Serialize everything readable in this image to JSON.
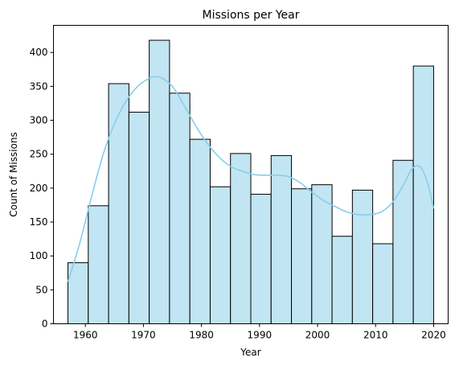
{
  "chart_data": {
    "type": "bar",
    "title": "Missions per Year",
    "xlabel": "Year",
    "ylabel": "Count of Missions",
    "xlim": [
      1954.5,
      2022.5
    ],
    "ylim": [
      0,
      440
    ],
    "x_ticks": [
      1960,
      1970,
      1980,
      1990,
      2000,
      2010,
      2020
    ],
    "y_ticks": [
      0,
      50,
      100,
      150,
      200,
      250,
      300,
      350,
      400
    ],
    "bins": [
      {
        "start": 1957.0,
        "end": 1960.5,
        "value": 90
      },
      {
        "start": 1960.5,
        "end": 1964.0,
        "value": 174
      },
      {
        "start": 1964.0,
        "end": 1967.5,
        "value": 354
      },
      {
        "start": 1967.5,
        "end": 1971.0,
        "value": 312
      },
      {
        "start": 1971.0,
        "end": 1974.5,
        "value": 418
      },
      {
        "start": 1974.5,
        "end": 1978.0,
        "value": 340
      },
      {
        "start": 1978.0,
        "end": 1981.5,
        "value": 272
      },
      {
        "start": 1981.5,
        "end": 1985.0,
        "value": 202
      },
      {
        "start": 1985.0,
        "end": 1988.5,
        "value": 251
      },
      {
        "start": 1988.5,
        "end": 1992.0,
        "value": 191
      },
      {
        "start": 1992.0,
        "end": 1995.5,
        "value": 248
      },
      {
        "start": 1995.5,
        "end": 1999.0,
        "value": 199
      },
      {
        "start": 1999.0,
        "end": 2002.5,
        "value": 205
      },
      {
        "start": 2002.5,
        "end": 2006.0,
        "value": 129
      },
      {
        "start": 2006.0,
        "end": 2009.5,
        "value": 197
      },
      {
        "start": 2009.5,
        "end": 2013.0,
        "value": 118
      },
      {
        "start": 2013.0,
        "end": 2016.5,
        "value": 241
      },
      {
        "start": 2016.5,
        "end": 2020.0,
        "value": 380
      }
    ],
    "kde": {
      "x": [
        1957,
        1959,
        1961,
        1963,
        1965,
        1967,
        1969,
        1971,
        1972,
        1973,
        1975,
        1977,
        1979,
        1981,
        1983,
        1985,
        1987,
        1989,
        1991,
        1993,
        1995,
        1997,
        1999,
        2001,
        2003,
        2005,
        2007,
        2009,
        2011,
        2013,
        2015,
        2016,
        2017,
        2018,
        2019,
        2020
      ],
      "y": [
        62,
        118,
        185,
        248,
        295,
        328,
        350,
        362,
        364,
        363,
        350,
        322,
        292,
        266,
        246,
        232,
        225,
        220,
        219,
        219,
        217,
        208,
        194,
        182,
        173,
        165,
        161,
        161,
        165,
        180,
        208,
        225,
        233,
        228,
        206,
        170
      ]
    },
    "colors": {
      "bar_fill": "#C2E5F3",
      "bar_edge": "#000000",
      "kde_line": "#87CEEB"
    },
    "grid": false
  }
}
